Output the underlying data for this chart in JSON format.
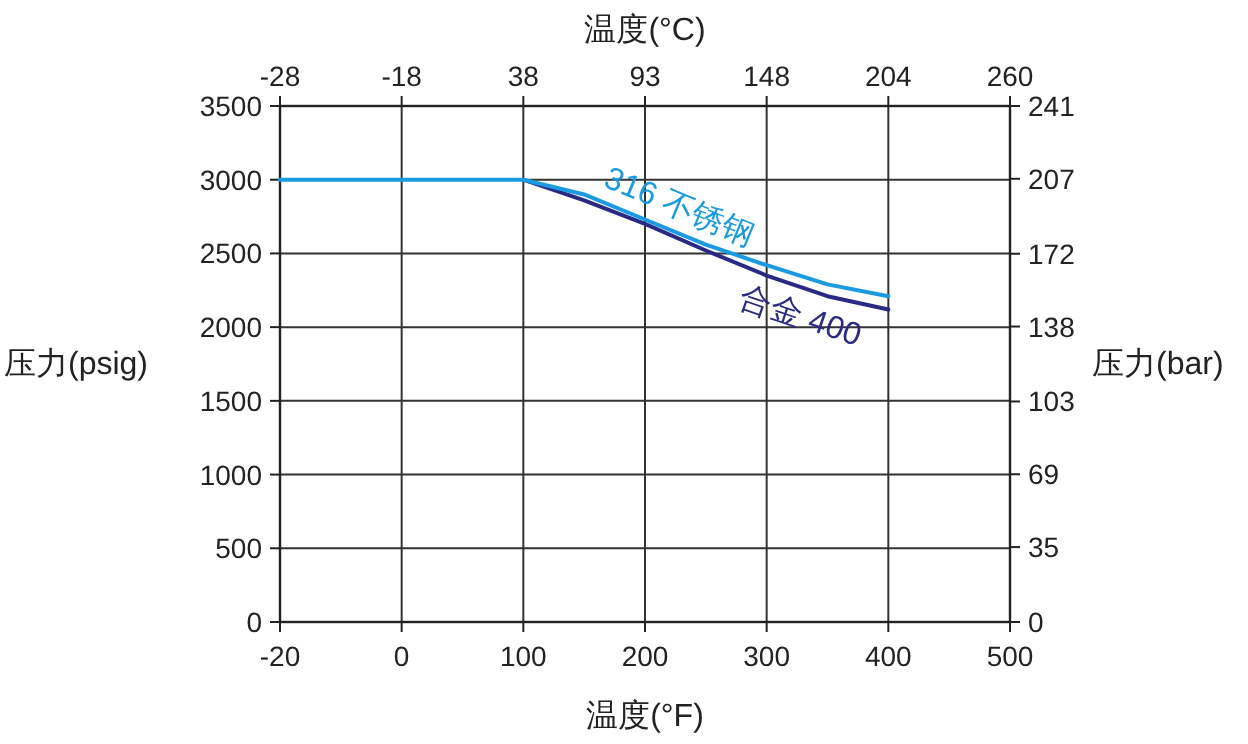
{
  "chart_data": {
    "type": "line",
    "xlabel": "温度(°F)",
    "x2label": "温度(°C)",
    "ylabel": "压力(psig)",
    "y2label": "压力(bar)",
    "categories": [
      "-20",
      null,
      "0",
      null,
      "100",
      null,
      "200",
      null,
      "300",
      null,
      "400",
      null,
      "500"
    ],
    "annotations": [
      "-28",
      "-18",
      "38",
      "93",
      "148",
      "204",
      "260"
    ],
    "ylim": [
      0,
      3500
    ],
    "yticks": [
      0,
      500,
      1000,
      1500,
      2000,
      2500,
      3000,
      3500
    ],
    "y2lim": [
      0,
      241
    ],
    "y2ticks": [
      0,
      35,
      69,
      103,
      138,
      172,
      207,
      241
    ],
    "grid": true,
    "legend": false,
    "marker": "none",
    "line_style": "solid",
    "series": [
      {
        "name": "316 不锈钢",
        "color": "#1a9ae0",
        "values": [
          3000,
          3000,
          3000,
          3000,
          3000,
          2900,
          2730,
          2560,
          2420,
          2290,
          2210,
          null,
          null
        ]
      },
      {
        "name": "合金 400",
        "color": "#2a2a86",
        "values": [
          null,
          null,
          null,
          null,
          3000,
          2860,
          2700,
          2520,
          2350,
          2210,
          2120,
          null,
          null
        ]
      }
    ]
  }
}
